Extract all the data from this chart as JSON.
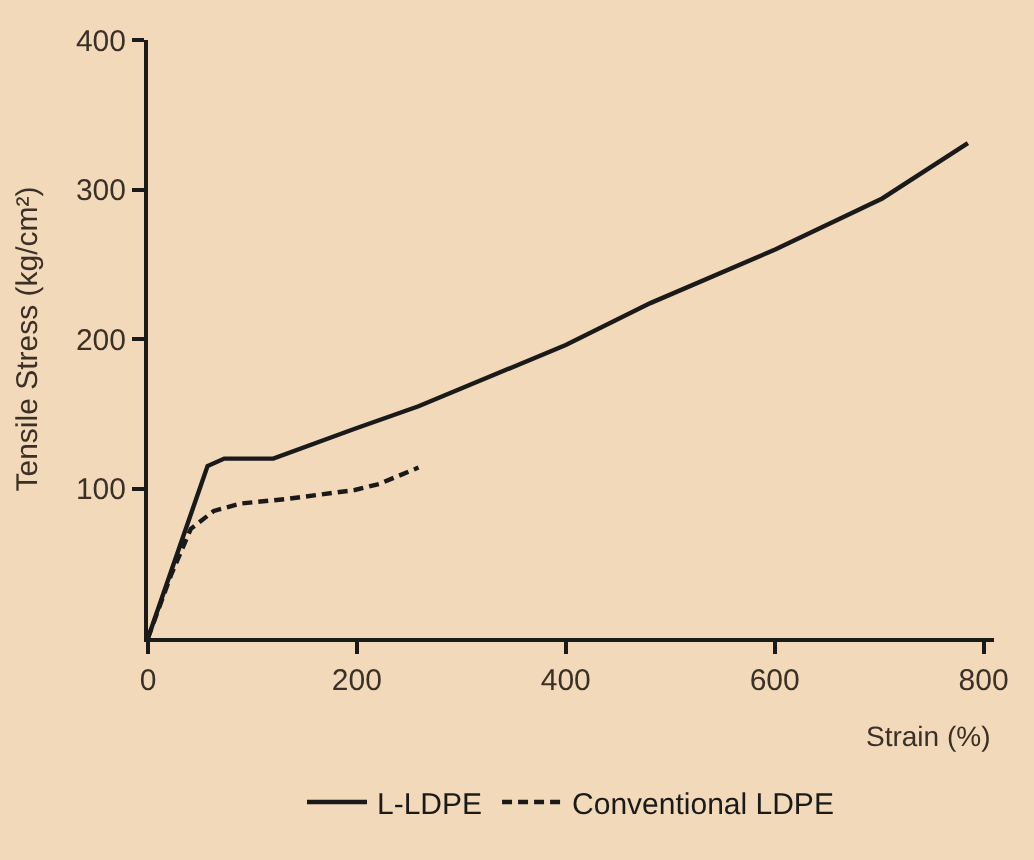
{
  "chart_data": {
    "type": "line",
    "xlabel": "Strain (%)",
    "ylabel": "Tensile Stress (kg/cm²)",
    "xlim": [
      0,
      810
    ],
    "ylim": [
      0,
      400
    ],
    "xticks": [
      0,
      200,
      400,
      600,
      800
    ],
    "yticks": [
      100,
      200,
      300,
      400
    ],
    "grid": false,
    "legend": "bottom",
    "marker": "none",
    "series": [
      {
        "name": "L-LDPE",
        "color": "#1a1a1a",
        "line_style": "solid",
        "x": [
          0,
          57,
          73,
          120,
          198,
          259,
          400,
          481,
          601,
          703,
          785
        ],
        "values": [
          0,
          115,
          120,
          120,
          140,
          155,
          196,
          224,
          260,
          294,
          331
        ]
      },
      {
        "name": "Conventional LDPE",
        "color": "#1a1a1a",
        "line_style": "dashed",
        "x": [
          0,
          22,
          41,
          63,
          89,
          133,
          198,
          221,
          259
        ],
        "values": [
          0,
          42,
          73,
          85,
          90,
          93,
          99,
          103,
          114
        ]
      }
    ]
  }
}
